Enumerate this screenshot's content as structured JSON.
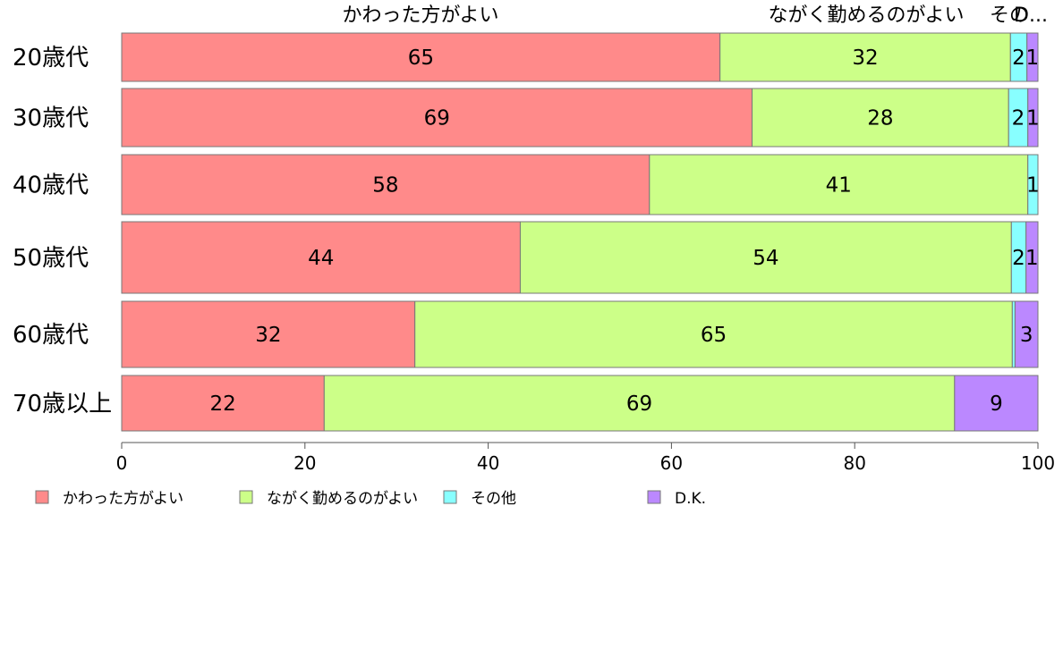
{
  "chart_data": {
    "type": "bar",
    "orientation": "horizontal",
    "stacked": true,
    "categories": [
      "20歳代",
      "30歳代",
      "40歳代",
      "50歳代",
      "60歳代",
      "70歳以上"
    ],
    "series": [
      {
        "name": "かわった方がよい",
        "color": "#ff8a8a",
        "values": [
          65.3,
          68.8,
          57.6,
          43.5,
          32.0,
          22.1
        ],
        "labels": [
          "65",
          "69",
          "58",
          "44",
          "32",
          "22"
        ]
      },
      {
        "name": "ながく勤めるのがよい",
        "color": "#ccff88",
        "values": [
          31.7,
          28.0,
          41.3,
          53.6,
          65.2,
          68.8
        ],
        "labels": [
          "32",
          "28",
          "41",
          "54",
          "65",
          "69"
        ]
      },
      {
        "name": "その他",
        "color": "#88ffff",
        "values": [
          1.8,
          2.1,
          1.1,
          1.6,
          0.3,
          0.0
        ],
        "labels": [
          "2",
          "2",
          "1",
          "2",
          "",
          ""
        ]
      },
      {
        "name": "D.K.",
        "color": "#bb88ff",
        "values": [
          1.2,
          1.1,
          0.0,
          1.3,
          2.5,
          9.1
        ],
        "labels": [
          "1",
          "1",
          "",
          "1",
          "3",
          "9"
        ]
      }
    ],
    "top_labels": [
      "かわった方がよい",
      "ながく勤めるのがよい",
      "その",
      "D..."
    ],
    "xlim": [
      0,
      100
    ],
    "xticks": [
      0,
      20,
      40,
      60,
      80,
      100
    ],
    "legend": {
      "position": "bottom",
      "items": [
        "かわった方がよい",
        "ながく勤めるのがよい",
        "その他",
        "D.K."
      ]
    }
  }
}
